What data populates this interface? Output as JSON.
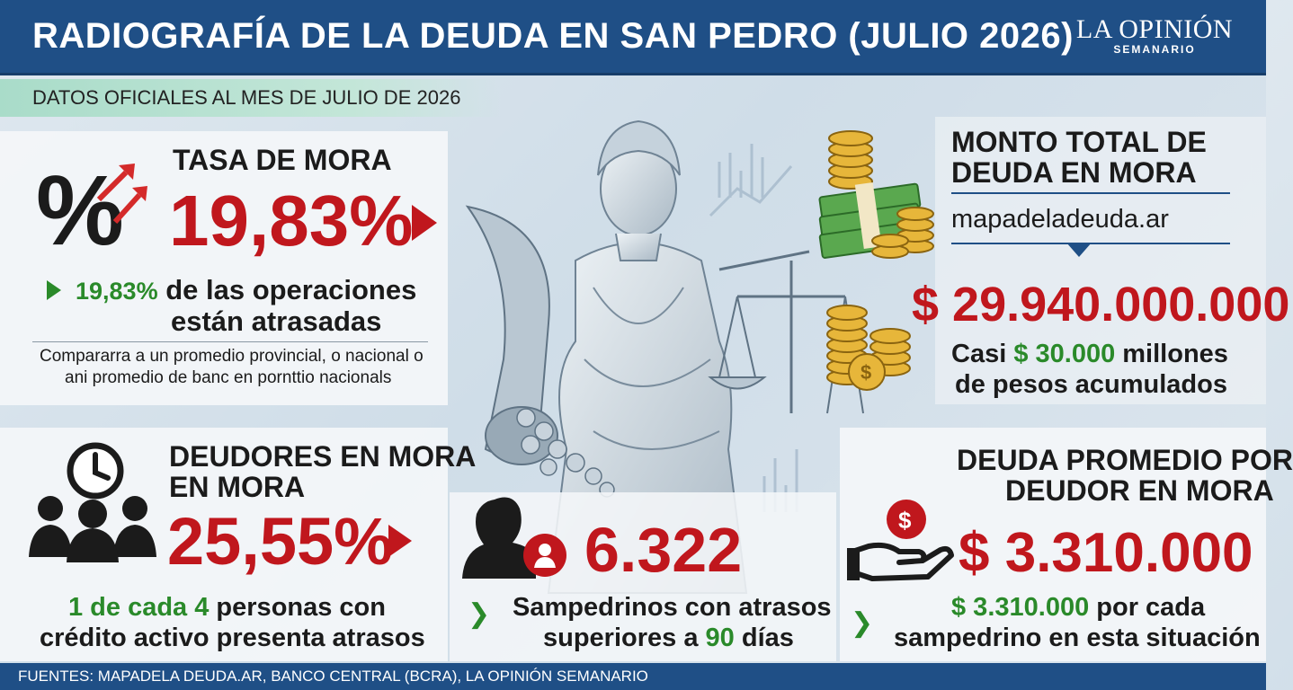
{
  "header": {
    "title": "RADIOGRAFÍA DE LA DEUDA EN SAN PEDRO (JULIO 2026)",
    "logo_brand": "LA OPINIÓN",
    "logo_sub": "SEMANARIO"
  },
  "subheader": "DATOS OFICIALES AL MES DE JULIO DE 2026",
  "tasa_mora": {
    "heading": "TASA DE MORA",
    "value": "19,83%",
    "line1_value": "19,83%",
    "line1_text": " de las operaciones",
    "line2": "están atrasadas",
    "note1": "Compararra a un promedio provincial, o nacional o",
    "note2": "ani promedio de banc en pornttio nacionals"
  },
  "monto_total": {
    "heading1": "MONTO TOTAL DE",
    "heading2": "DEUDA EN MORA",
    "source": "mapadeladeuda.ar",
    "value": "$ 29.940.000.000",
    "line1_a": "Casi ",
    "line1_b": "$ 30.000",
    "line1_c": " millones",
    "line2": "de pesos acumulados"
  },
  "deudores": {
    "heading1": "DEUDORES EN MORA",
    "heading2": "EN MORA",
    "value": "25,55%",
    "line1_a": "1 de cada 4",
    "line1_b": " personas con",
    "line2": "crédito activo presenta atrasos"
  },
  "sampedrinos": {
    "value": "6.322",
    "line1": "Sampedrinos con atrasos",
    "line2_a": "superiores a ",
    "line2_b": "90",
    "line2_c": " días"
  },
  "deuda_promedio": {
    "heading1": "DEUDA PROMEDIO POR",
    "heading2": "DEUDOR EN MORA",
    "value": "$ 3.310.000",
    "line1_a": "$ 3.310.000",
    "line1_b": " por cada",
    "line2": "sampedrino en esta situación"
  },
  "footer": "FUENTES: MAPADELA DEUDA.AR, BANCO CENTRAL (BCRA), LA OPINIÓN SEMANARIO",
  "colors": {
    "header_blue": "#1f4f86",
    "accent_red": "#c0171d",
    "accent_green": "#2a8a2a",
    "mint": "#a9dcc9"
  },
  "icons": [
    "percent-arrows-icon",
    "money-stack-icon",
    "coins-dollar-icon",
    "clock-people-icon",
    "person-silhouette-icon",
    "hand-coin-icon",
    "statue-justice-cornucopia"
  ]
}
